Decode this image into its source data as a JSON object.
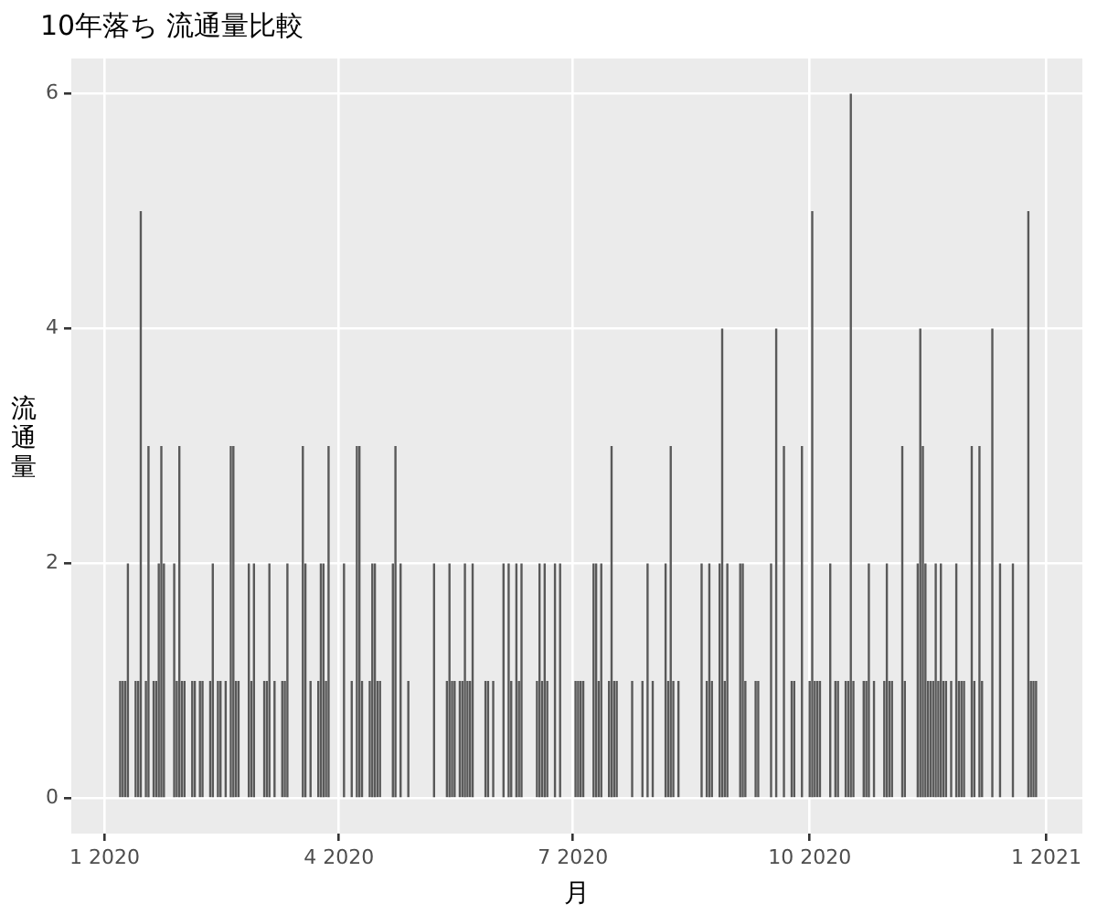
{
  "chart_data": {
    "type": "bar",
    "title": "10年落ち 流通量比較",
    "xlabel": "月",
    "ylabel": "流通量",
    "x": [
      "2020-01-07",
      "2020-01-08",
      "2020-01-09",
      "2020-01-10",
      "2020-01-13",
      "2020-01-14",
      "2020-01-15",
      "2020-01-17",
      "2020-01-18",
      "2020-01-20",
      "2020-01-21",
      "2020-01-22",
      "2020-01-23",
      "2020-01-24",
      "2020-01-28",
      "2020-01-29",
      "2020-01-30",
      "2020-01-31",
      "2020-02-01",
      "2020-02-04",
      "2020-02-05",
      "2020-02-07",
      "2020-02-08",
      "2020-02-11",
      "2020-02-12",
      "2020-02-14",
      "2020-02-15",
      "2020-02-17",
      "2020-02-19",
      "2020-02-20",
      "2020-02-21",
      "2020-02-22",
      "2020-02-26",
      "2020-02-27",
      "2020-02-28",
      "2020-03-03",
      "2020-03-04",
      "2020-03-05",
      "2020-03-07",
      "2020-03-10",
      "2020-03-11",
      "2020-03-12",
      "2020-03-18",
      "2020-03-19",
      "2020-03-21",
      "2020-03-24",
      "2020-03-25",
      "2020-03-26",
      "2020-03-27",
      "2020-03-28",
      "2020-04-03",
      "2020-04-06",
      "2020-04-08",
      "2020-04-09",
      "2020-04-10",
      "2020-04-13",
      "2020-04-14",
      "2020-04-15",
      "2020-04-16",
      "2020-04-17",
      "2020-04-22",
      "2020-04-23",
      "2020-04-25",
      "2020-04-28",
      "2020-05-08",
      "2020-05-13",
      "2020-05-14",
      "2020-05-15",
      "2020-05-16",
      "2020-05-18",
      "2020-05-19",
      "2020-05-20",
      "2020-05-21",
      "2020-05-22",
      "2020-05-23",
      "2020-05-28",
      "2020-05-29",
      "2020-05-31",
      "2020-06-04",
      "2020-06-06",
      "2020-06-07",
      "2020-06-09",
      "2020-06-10",
      "2020-06-11",
      "2020-06-17",
      "2020-06-18",
      "2020-06-19",
      "2020-06-20",
      "2020-06-21",
      "2020-06-24",
      "2020-06-26",
      "2020-07-02",
      "2020-07-03",
      "2020-07-04",
      "2020-07-05",
      "2020-07-09",
      "2020-07-10",
      "2020-07-11",
      "2020-07-12",
      "2020-07-15",
      "2020-07-16",
      "2020-07-17",
      "2020-07-18",
      "2020-07-24",
      "2020-07-28",
      "2020-07-30",
      "2020-08-01",
      "2020-08-06",
      "2020-08-07",
      "2020-08-08",
      "2020-08-09",
      "2020-08-11",
      "2020-08-20",
      "2020-08-22",
      "2020-08-23",
      "2020-08-24",
      "2020-08-27",
      "2020-08-28",
      "2020-08-29",
      "2020-08-30",
      "2020-09-04",
      "2020-09-05",
      "2020-09-06",
      "2020-09-10",
      "2020-09-11",
      "2020-09-16",
      "2020-09-18",
      "2020-09-21",
      "2020-09-24",
      "2020-09-25",
      "2020-09-28",
      "2020-10-01",
      "2020-10-02",
      "2020-10-03",
      "2020-10-04",
      "2020-10-05",
      "2020-10-09",
      "2020-10-11",
      "2020-10-12",
      "2020-10-15",
      "2020-10-16",
      "2020-10-17",
      "2020-10-18",
      "2020-10-22",
      "2020-10-23",
      "2020-10-24",
      "2020-10-26",
      "2020-10-30",
      "2020-10-31",
      "2020-11-01",
      "2020-11-02",
      "2020-11-06",
      "2020-11-07",
      "2020-11-12",
      "2020-11-13",
      "2020-11-14",
      "2020-11-15",
      "2020-11-16",
      "2020-11-17",
      "2020-11-18",
      "2020-11-19",
      "2020-11-20",
      "2020-11-21",
      "2020-11-22",
      "2020-11-23",
      "2020-11-25",
      "2020-11-27",
      "2020-11-28",
      "2020-11-29",
      "2020-11-30",
      "2020-12-03",
      "2020-12-04",
      "2020-12-06",
      "2020-12-07",
      "2020-12-11",
      "2020-12-14",
      "2020-12-19",
      "2020-12-25",
      "2020-12-26",
      "2020-12-27",
      "2020-12-28"
    ],
    "values": [
      1,
      1,
      1,
      2,
      1,
      1,
      5,
      1,
      3,
      1,
      1,
      2,
      3,
      2,
      2,
      1,
      3,
      1,
      1,
      1,
      1,
      1,
      1,
      1,
      2,
      1,
      1,
      1,
      3,
      3,
      1,
      1,
      2,
      1,
      2,
      1,
      1,
      2,
      1,
      1,
      1,
      2,
      3,
      2,
      1,
      1,
      2,
      2,
      1,
      3,
      2,
      1,
      3,
      3,
      1,
      1,
      2,
      2,
      1,
      1,
      2,
      3,
      2,
      1,
      2,
      1,
      2,
      1,
      1,
      1,
      1,
      2,
      1,
      1,
      2,
      1,
      1,
      1,
      2,
      2,
      1,
      2,
      1,
      2,
      1,
      2,
      1,
      2,
      1,
      2,
      2,
      1,
      1,
      1,
      1,
      2,
      2,
      1,
      2,
      1,
      3,
      1,
      1,
      1,
      1,
      2,
      1,
      2,
      1,
      3,
      1,
      1,
      2,
      1,
      2,
      1,
      2,
      4,
      1,
      2,
      2,
      2,
      1,
      1,
      1,
      2,
      4,
      3,
      1,
      1,
      3,
      1,
      5,
      1,
      1,
      1,
      2,
      1,
      1,
      1,
      1,
      6,
      1,
      1,
      1,
      2,
      1,
      1,
      2,
      1,
      1,
      3,
      1,
      2,
      4,
      3,
      2,
      1,
      1,
      1,
      2,
      1,
      2,
      1,
      1,
      1,
      2,
      1,
      1,
      1,
      3,
      1,
      3,
      1,
      4,
      2,
      2,
      5,
      1,
      1,
      1
    ],
    "color": "#595959",
    "xlim": [
      "2019-12-19",
      "2021-01-15"
    ],
    "xticks": [
      {
        "value": "2020-01-01",
        "label": "1 2020"
      },
      {
        "value": "2020-04-01",
        "label": "4 2020"
      },
      {
        "value": "2020-07-01",
        "label": "7 2020"
      },
      {
        "value": "2020-10-01",
        "label": "10 2020"
      },
      {
        "value": "2021-01-01",
        "label": "1 2021"
      }
    ],
    "ylim": [
      -0.3,
      6.3
    ],
    "yticks": [
      0,
      2,
      4,
      6
    ],
    "grid": true
  }
}
